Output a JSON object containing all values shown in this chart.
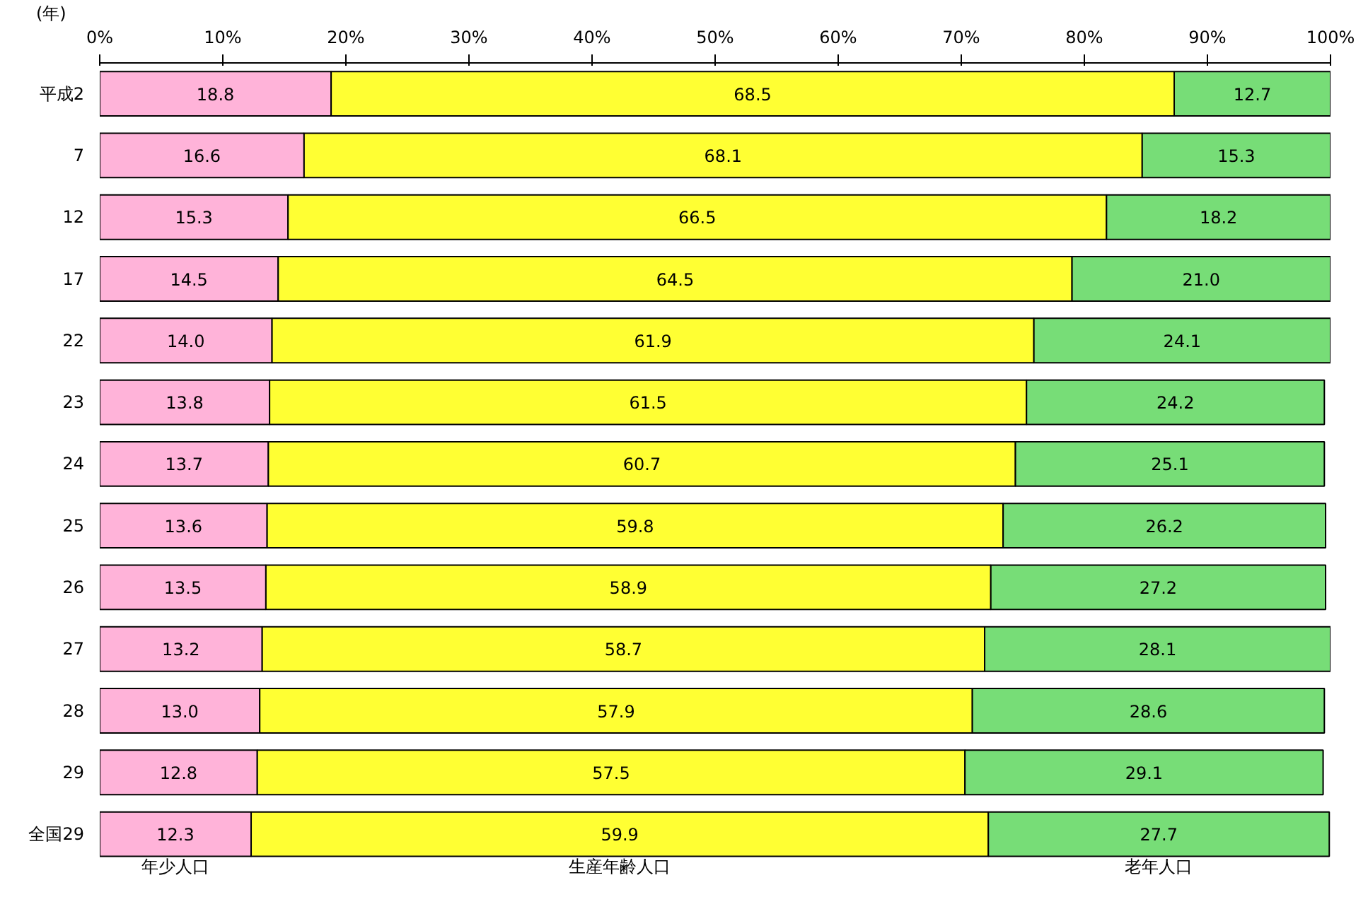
{
  "chart_data": {
    "type": "bar",
    "orientation": "horizontal",
    "stacked": true,
    "ylabel": "(年)",
    "categories": [
      "平成2",
      "7",
      "12",
      "17",
      "22",
      "23",
      "24",
      "25",
      "26",
      "27",
      "28",
      "29",
      "全国29"
    ],
    "series": [
      {
        "name": "年少人口",
        "color": "#ffb3d9",
        "values": [
          18.8,
          16.6,
          15.3,
          14.5,
          14.0,
          13.8,
          13.7,
          13.6,
          13.5,
          13.2,
          13.0,
          12.8,
          12.3
        ],
        "value_labels": [
          "18.8",
          "16.6",
          "15.3",
          "14.5",
          "14.0",
          "13.8",
          "13.7",
          "13.6",
          "13.5",
          "13.2",
          "13.0",
          "12.8",
          "12.3"
        ]
      },
      {
        "name": "生産年齢人口",
        "color": "#ffff33",
        "values": [
          68.5,
          68.1,
          66.5,
          64.5,
          61.9,
          61.5,
          60.7,
          59.8,
          58.9,
          58.7,
          57.9,
          57.5,
          59.9
        ]
      },
      {
        "name": "老年人口",
        "color": "#77dd77",
        "values": [
          12.7,
          15.3,
          18.2,
          21.0,
          24.1,
          24.2,
          25.1,
          26.2,
          27.2,
          28.1,
          28.6,
          29.1,
          27.7
        ],
        "value_labels": [
          "12.7",
          "15.3",
          "18.2",
          "21.0",
          "24.1",
          "24.2",
          "25.1",
          "26.2",
          "27.2",
          "28.1",
          "28.6",
          "29.1",
          "27.7"
        ]
      }
    ],
    "xlim": [
      0,
      100
    ],
    "xticks": [
      {
        "value": 0,
        "label": "0%"
      },
      {
        "value": 10,
        "label": "10%"
      },
      {
        "value": 20,
        "label": "20%"
      },
      {
        "value": 30,
        "label": "30%"
      },
      {
        "value": 40,
        "label": "40%"
      },
      {
        "value": 50,
        "label": "50%"
      },
      {
        "value": 60,
        "label": "60%"
      },
      {
        "value": 70,
        "label": "70%"
      },
      {
        "value": 80,
        "label": "80%"
      },
      {
        "value": 90,
        "label": "90%"
      },
      {
        "value": 100,
        "label": "100%"
      }
    ],
    "data_labels": true,
    "grid": false
  }
}
